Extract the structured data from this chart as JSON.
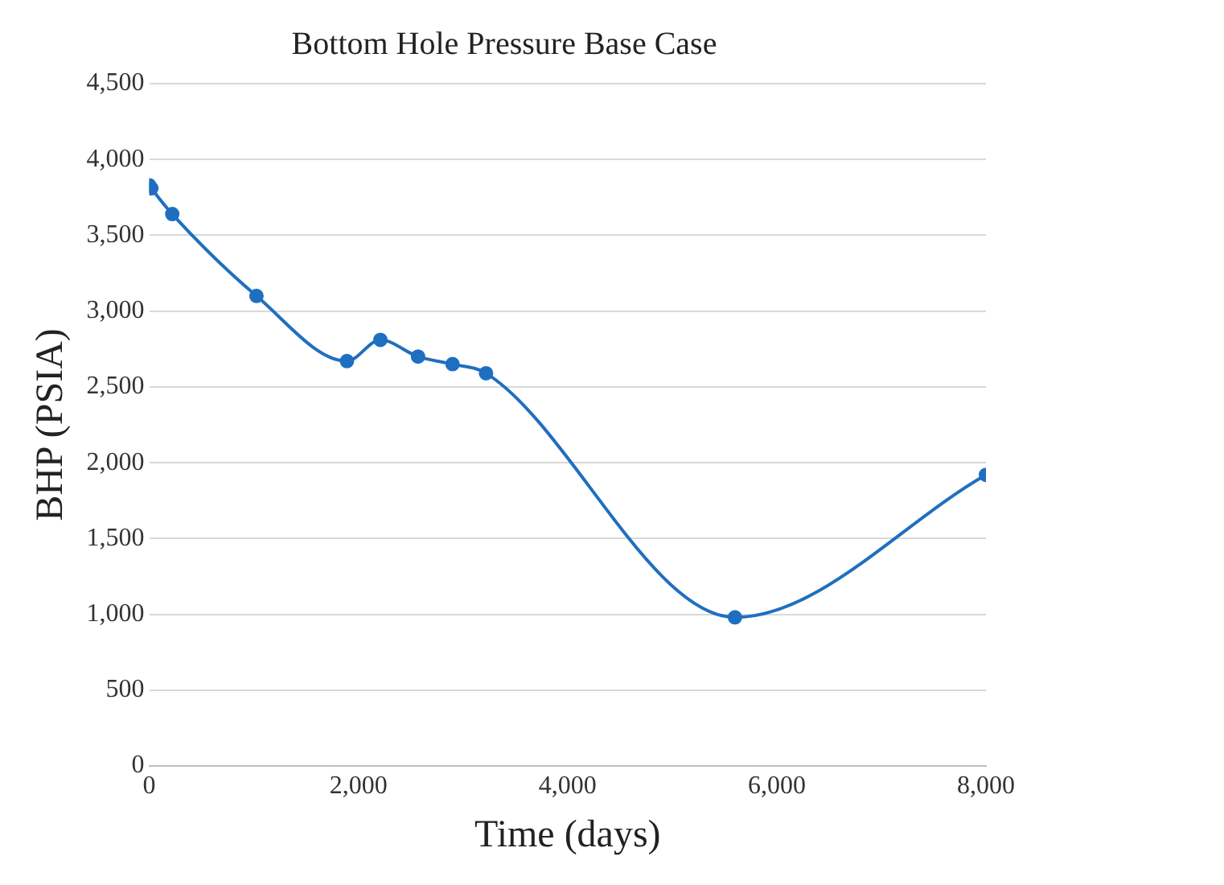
{
  "chart_data": {
    "type": "line",
    "title": "Bottom Hole Pressure Base Case",
    "xlabel": "Time (days)",
    "ylabel": "BHP (PSIA)",
    "x": [
      0,
      20,
      220,
      1025,
      1890,
      2210,
      2570,
      2900,
      3220,
      5600,
      8000
    ],
    "series": [
      {
        "color": "#1f6fc0",
        "values": [
          3830,
          3810,
          3640,
          3100,
          2670,
          2810,
          2700,
          2650,
          2590,
          980,
          1920
        ]
      }
    ],
    "xlim": [
      0,
      8000
    ],
    "xticks": [
      {
        "value": 0,
        "label": "0"
      },
      {
        "value": 2000,
        "label": "2,000"
      },
      {
        "value": 4000,
        "label": "4,000"
      },
      {
        "value": 6000,
        "label": "6,000"
      },
      {
        "value": 8000,
        "label": "8,000"
      }
    ],
    "ylim": [
      0,
      4500
    ],
    "yticks": [
      {
        "value": 0,
        "label": "0"
      },
      {
        "value": 500,
        "label": "500"
      },
      {
        "value": 1000,
        "label": "1,000"
      },
      {
        "value": 1500,
        "label": "1,500"
      },
      {
        "value": 2000,
        "label": "2,000"
      },
      {
        "value": 2500,
        "label": "2,500"
      },
      {
        "value": 3000,
        "label": "3,000"
      },
      {
        "value": 3500,
        "label": "3,500"
      },
      {
        "value": 4000,
        "label": "4,000"
      },
      {
        "value": 4500,
        "label": "4,500"
      }
    ],
    "grid": "y",
    "marker": "circle"
  }
}
